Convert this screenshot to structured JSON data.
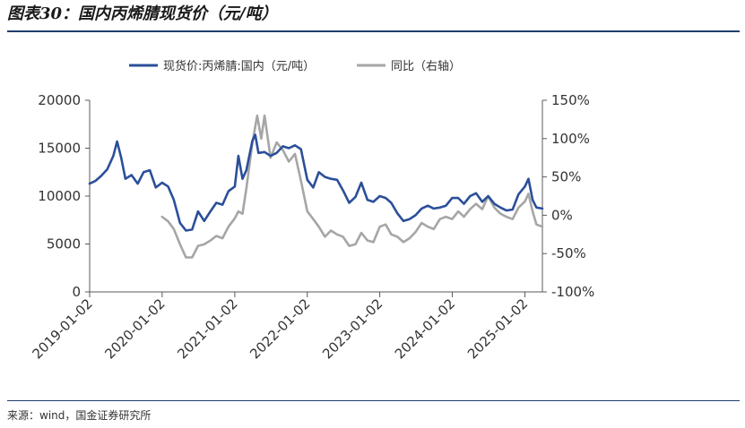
{
  "header": {
    "title": "图表30：国内丙烯腈现货价（元/吨）"
  },
  "footer": {
    "source": "来源：wind，国金证券研究所"
  },
  "chart_data": {
    "type": "line",
    "title": "",
    "legend_position": "top",
    "grid": false,
    "x_axis": {
      "type": "date",
      "range": [
        "2019-01-02",
        "2025-03-31"
      ],
      "ticks": [
        "2019-01-02",
        "2020-01-02",
        "2021-01-02",
        "2022-01-02",
        "2023-01-02",
        "2024-01-02",
        "2025-01-02"
      ]
    },
    "y_left": {
      "min": 0,
      "max": 20000,
      "ticks": [
        "0",
        "5000",
        "10000",
        "15000",
        "20000"
      ]
    },
    "y_right": {
      "min": -100,
      "max": 150,
      "unit": "%",
      "ticks": [
        "-100%",
        "-50%",
        "0%",
        "50%",
        "100%",
        "150%"
      ]
    },
    "series": [
      {
        "name": "现货价:丙烯腈:国内（元/吨）",
        "axis": "left",
        "color": "#2b4f9a",
        "points": [
          [
            "2019-01-02",
            11300
          ],
          [
            "2019-02-01",
            11600
          ],
          [
            "2019-03-01",
            12100
          ],
          [
            "2019-04-01",
            12800
          ],
          [
            "2019-05-01",
            14200
          ],
          [
            "2019-05-20",
            15700
          ],
          [
            "2019-06-10",
            14000
          ],
          [
            "2019-07-01",
            11800
          ],
          [
            "2019-08-01",
            12200
          ],
          [
            "2019-09-01",
            11300
          ],
          [
            "2019-10-01",
            12500
          ],
          [
            "2019-11-01",
            12700
          ],
          [
            "2019-12-01",
            10900
          ],
          [
            "2020-01-02",
            11400
          ],
          [
            "2020-02-01",
            11000
          ],
          [
            "2020-03-01",
            9600
          ],
          [
            "2020-04-01",
            7200
          ],
          [
            "2020-05-01",
            6400
          ],
          [
            "2020-06-01",
            6500
          ],
          [
            "2020-07-01",
            8400
          ],
          [
            "2020-08-01",
            7400
          ],
          [
            "2020-09-01",
            8400
          ],
          [
            "2020-10-01",
            9300
          ],
          [
            "2020-11-01",
            9100
          ],
          [
            "2020-12-01",
            10500
          ],
          [
            "2021-01-02",
            11000
          ],
          [
            "2021-01-20",
            14200
          ],
          [
            "2021-02-10",
            11800
          ],
          [
            "2021-03-01",
            12700
          ],
          [
            "2021-04-01",
            15800
          ],
          [
            "2021-04-15",
            16400
          ],
          [
            "2021-05-01",
            14500
          ],
          [
            "2021-06-01",
            14600
          ],
          [
            "2021-07-01",
            14200
          ],
          [
            "2021-08-01",
            14500
          ],
          [
            "2021-09-01",
            15200
          ],
          [
            "2021-10-01",
            15000
          ],
          [
            "2021-11-01",
            15300
          ],
          [
            "2021-12-01",
            14900
          ],
          [
            "2022-01-02",
            11700
          ],
          [
            "2022-02-01",
            10900
          ],
          [
            "2022-03-01",
            12500
          ],
          [
            "2022-04-01",
            12000
          ],
          [
            "2022-05-01",
            11800
          ],
          [
            "2022-06-01",
            11700
          ],
          [
            "2022-07-01",
            10600
          ],
          [
            "2022-08-01",
            9300
          ],
          [
            "2022-09-01",
            9900
          ],
          [
            "2022-10-01",
            11400
          ],
          [
            "2022-11-01",
            9600
          ],
          [
            "2022-12-01",
            9400
          ],
          [
            "2023-01-02",
            10000
          ],
          [
            "2023-02-01",
            9800
          ],
          [
            "2023-03-01",
            9300
          ],
          [
            "2023-04-01",
            8200
          ],
          [
            "2023-05-01",
            7400
          ],
          [
            "2023-06-01",
            7600
          ],
          [
            "2023-07-01",
            8000
          ],
          [
            "2023-08-01",
            8700
          ],
          [
            "2023-09-01",
            9000
          ],
          [
            "2023-10-01",
            8700
          ],
          [
            "2023-11-01",
            8800
          ],
          [
            "2023-12-01",
            9000
          ],
          [
            "2024-01-02",
            9800
          ],
          [
            "2024-02-01",
            9800
          ],
          [
            "2024-03-01",
            9200
          ],
          [
            "2024-04-01",
            10000
          ],
          [
            "2024-05-01",
            10300
          ],
          [
            "2024-06-01",
            9400
          ],
          [
            "2024-07-01",
            10000
          ],
          [
            "2024-08-01",
            9200
          ],
          [
            "2024-09-01",
            8800
          ],
          [
            "2024-10-01",
            8500
          ],
          [
            "2024-11-01",
            8600
          ],
          [
            "2024-12-01",
            10200
          ],
          [
            "2025-01-02",
            11000
          ],
          [
            "2025-01-20",
            11800
          ],
          [
            "2025-02-10",
            9600
          ],
          [
            "2025-03-01",
            8800
          ],
          [
            "2025-03-31",
            8700
          ]
        ]
      },
      {
        "name": "同比（右轴）",
        "axis": "right",
        "color": "#a6a6a6",
        "points": [
          [
            "2020-01-02",
            -2
          ],
          [
            "2020-02-01",
            -8
          ],
          [
            "2020-03-01",
            -18
          ],
          [
            "2020-04-01",
            -38
          ],
          [
            "2020-05-01",
            -55
          ],
          [
            "2020-06-01",
            -55
          ],
          [
            "2020-07-01",
            -40
          ],
          [
            "2020-08-01",
            -38
          ],
          [
            "2020-09-01",
            -33
          ],
          [
            "2020-10-01",
            -27
          ],
          [
            "2020-11-01",
            -30
          ],
          [
            "2020-12-01",
            -15
          ],
          [
            "2021-01-02",
            -4
          ],
          [
            "2021-01-20",
            5
          ],
          [
            "2021-02-10",
            2
          ],
          [
            "2021-03-01",
            35
          ],
          [
            "2021-04-01",
            95
          ],
          [
            "2021-04-25",
            130
          ],
          [
            "2021-05-15",
            100
          ],
          [
            "2021-06-01",
            130
          ],
          [
            "2021-07-01",
            75
          ],
          [
            "2021-08-01",
            95
          ],
          [
            "2021-09-01",
            85
          ],
          [
            "2021-10-01",
            70
          ],
          [
            "2021-11-01",
            80
          ],
          [
            "2021-12-01",
            45
          ],
          [
            "2022-01-02",
            5
          ],
          [
            "2022-02-01",
            -5
          ],
          [
            "2022-03-01",
            -15
          ],
          [
            "2022-04-01",
            -28
          ],
          [
            "2022-05-01",
            -20
          ],
          [
            "2022-06-01",
            -25
          ],
          [
            "2022-07-01",
            -28
          ],
          [
            "2022-08-01",
            -40
          ],
          [
            "2022-09-01",
            -38
          ],
          [
            "2022-10-01",
            -23
          ],
          [
            "2022-11-01",
            -33
          ],
          [
            "2022-12-01",
            -35
          ],
          [
            "2023-01-02",
            -15
          ],
          [
            "2023-02-01",
            -12
          ],
          [
            "2023-03-01",
            -25
          ],
          [
            "2023-04-01",
            -28
          ],
          [
            "2023-05-01",
            -35
          ],
          [
            "2023-06-01",
            -30
          ],
          [
            "2023-07-01",
            -22
          ],
          [
            "2023-08-01",
            -10
          ],
          [
            "2023-09-01",
            -15
          ],
          [
            "2023-10-01",
            -18
          ],
          [
            "2023-11-01",
            -5
          ],
          [
            "2023-12-01",
            -2
          ],
          [
            "2024-01-02",
            -5
          ],
          [
            "2024-02-01",
            5
          ],
          [
            "2024-03-01",
            -2
          ],
          [
            "2024-04-01",
            8
          ],
          [
            "2024-05-01",
            15
          ],
          [
            "2024-06-01",
            8
          ],
          [
            "2024-07-01",
            25
          ],
          [
            "2024-08-01",
            10
          ],
          [
            "2024-09-01",
            2
          ],
          [
            "2024-10-01",
            -2
          ],
          [
            "2024-11-01",
            -5
          ],
          [
            "2024-12-01",
            10
          ],
          [
            "2025-01-02",
            18
          ],
          [
            "2025-01-20",
            28
          ],
          [
            "2025-02-10",
            5
          ],
          [
            "2025-03-01",
            -12
          ],
          [
            "2025-03-31",
            -15
          ]
        ]
      }
    ]
  }
}
